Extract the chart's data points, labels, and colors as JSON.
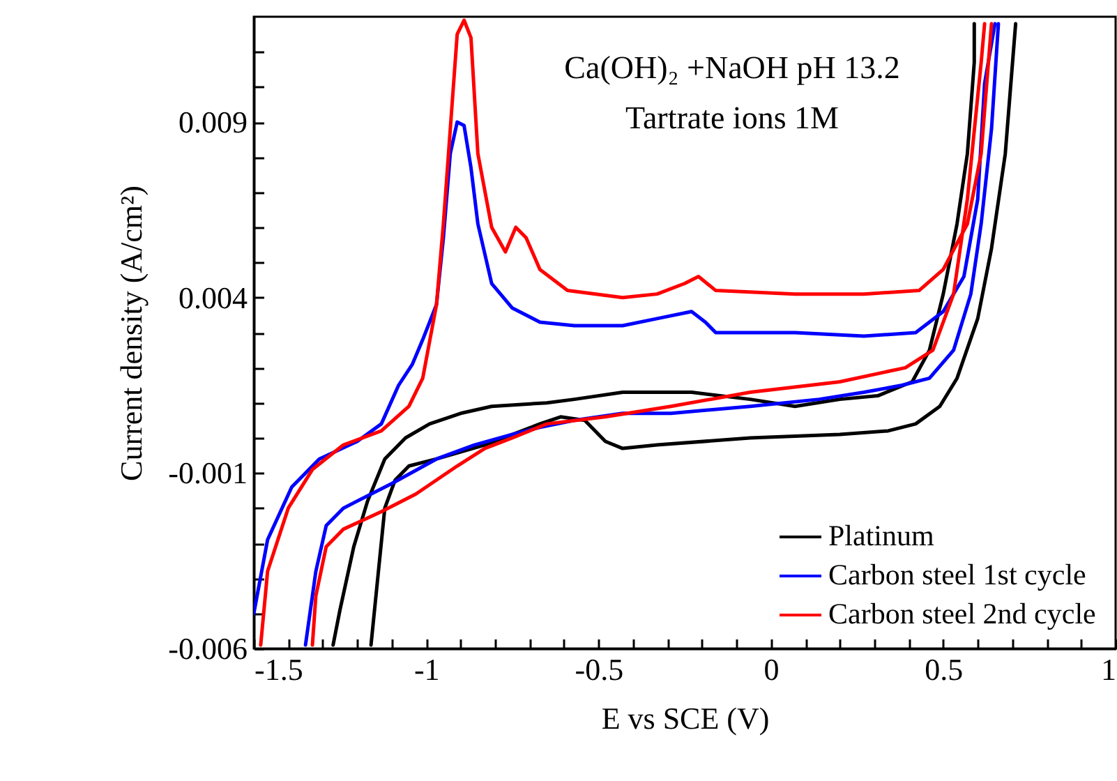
{
  "chart_data": {
    "type": "line",
    "xlabel": "E vs SCE (V)",
    "ylabel": "Current density (A/cm²)",
    "annotations": [
      "Ca(OH)₂ +NaOH pH 13.2",
      "Tartrate ions 1M"
    ],
    "xlim": [
      -1.5,
      1
    ],
    "ylim": [
      -0.006,
      0.012
    ],
    "xticks": [
      -1.5,
      {
        "value": -1.4,
        "label": null
      },
      {
        "value": -1.3,
        "label": null
      },
      {
        "value": -1.2,
        "label": null
      },
      {
        "value": -1.1,
        "label": null
      },
      -1,
      {
        "value": -0.9,
        "label": null
      },
      {
        "value": -0.8,
        "label": null
      },
      {
        "value": -0.7,
        "label": null
      },
      {
        "value": -0.6,
        "label": null
      },
      -0.5,
      {
        "value": -0.4,
        "label": null
      },
      {
        "value": -0.3,
        "label": null
      },
      {
        "value": -0.2,
        "label": null
      },
      {
        "value": -0.1,
        "label": null
      },
      0,
      {
        "value": 0.1,
        "label": null
      },
      {
        "value": 0.2,
        "label": null
      },
      {
        "value": 0.3,
        "label": null
      },
      {
        "value": 0.4,
        "label": null
      },
      0.5,
      {
        "value": 0.6,
        "label": null
      },
      {
        "value": 0.7,
        "label": null
      },
      {
        "value": 0.8,
        "label": null
      },
      {
        "value": 0.9,
        "label": null
      },
      1
    ],
    "yticks": [
      -0.006,
      {
        "value": -0.005,
        "label": null
      },
      {
        "value": -0.004,
        "label": null
      },
      {
        "value": -0.003,
        "label": null
      },
      {
        "value": -0.002,
        "label": null
      },
      -0.001,
      {
        "value": 0,
        "label": null
      },
      {
        "value": 0.001,
        "label": null
      },
      {
        "value": 0.002,
        "label": null
      },
      {
        "value": 0.003,
        "label": null
      },
      0.004,
      {
        "value": 0.005,
        "label": null
      },
      {
        "value": 0.006,
        "label": null
      },
      {
        "value": 0.007,
        "label": null
      },
      {
        "value": 0.008,
        "label": null
      },
      0.009,
      {
        "value": 0.01,
        "label": null
      },
      {
        "value": 0.011,
        "label": null
      }
    ],
    "grid": false,
    "legend": "bottom right",
    "line_style": "solid",
    "series": [
      {
        "name": "Platinum",
        "color": "#000000",
        "x": [
          -1.16,
          -1.12,
          -1.09,
          -1.05,
          -0.97,
          -0.83,
          -0.75,
          -0.67,
          -0.61,
          -0.54,
          -0.48,
          -0.43,
          -0.33,
          -0.06,
          0.2,
          0.34,
          0.42,
          0.49,
          0.54,
          0.6,
          0.64,
          0.68,
          0.71,
          0.65,
          0.59,
          0.59,
          0.57,
          0.54,
          0.5,
          0.46,
          0.41,
          0.31,
          0.2,
          0.07,
          -0.06,
          -0.23,
          -0.43,
          -0.57,
          -0.65,
          -0.81,
          -0.9,
          -0.99,
          -1.06,
          -1.12,
          -1.17,
          -1.21,
          -1.25,
          -1.27
        ],
        "values": [
          -0.0059,
          -0.002,
          -0.0012,
          -0.0008,
          -0.0006,
          -0.0002,
          0.0001,
          0.0004,
          0.0006,
          0.0005,
          -0.0001,
          -0.0003,
          -0.0002,
          0.0,
          0.0001,
          0.0002,
          0.0004,
          0.0009,
          0.0017,
          0.0034,
          0.0054,
          0.0081,
          0.0118,
          null,
          0.0118,
          0.0107,
          0.0081,
          0.0061,
          0.0041,
          0.0025,
          0.0016,
          0.0012,
          0.0011,
          0.0009,
          0.0011,
          0.0013,
          0.0013,
          0.0011,
          0.001,
          0.0009,
          0.0007,
          0.0004,
          0.0,
          -0.0006,
          -0.0018,
          -0.0031,
          -0.0049,
          -0.0059
        ]
      },
      {
        "name": "Carbon steel 1st cycle",
        "color": "#0000ff",
        "x": [
          -1.35,
          -1.32,
          -1.29,
          -1.24,
          -1.1,
          -0.97,
          -0.86,
          -0.75,
          -0.67,
          -0.57,
          -0.43,
          -0.29,
          -0.06,
          0.14,
          0.27,
          0.38,
          0.46,
          0.53,
          0.58,
          0.61,
          0.64,
          0.66,
          0.655,
          0.65,
          0.62,
          0.6,
          0.56,
          0.5,
          0.42,
          0.27,
          0.07,
          -0.16,
          -0.19,
          -0.23,
          -0.33,
          -0.43,
          -0.57,
          -0.67,
          -0.75,
          -0.81,
          -0.85,
          -0.87,
          -0.89,
          -0.91,
          -0.93,
          -0.95,
          -0.97,
          -1.01,
          -1.04,
          -1.08,
          -1.13,
          -1.2,
          -1.31,
          -1.39,
          -1.46,
          -1.5
        ],
        "values": [
          -0.0059,
          -0.0038,
          -0.0025,
          -0.002,
          -0.0013,
          -0.0006,
          -0.0002,
          0.0001,
          0.0003,
          0.0005,
          0.0007,
          0.0007,
          0.0009,
          0.0011,
          0.0013,
          0.0015,
          0.0017,
          0.0025,
          0.0041,
          0.0061,
          0.0088,
          0.0118,
          null,
          0.0118,
          0.0101,
          0.0068,
          0.0046,
          0.0036,
          0.003,
          0.0029,
          0.003,
          0.003,
          0.0033,
          0.0036,
          0.0034,
          0.0032,
          0.0032,
          0.0033,
          0.0037,
          0.0044,
          0.0061,
          0.0077,
          0.0089,
          0.009,
          0.0081,
          0.0057,
          0.0038,
          0.0028,
          0.0021,
          0.0015,
          0.0004,
          -0.0001,
          -0.0006,
          -0.0014,
          -0.0029,
          -0.005
        ]
      },
      {
        "name": "Carbon steel 2nd cycle",
        "color": "#ff0000",
        "x": [
          -1.33,
          -1.32,
          -1.29,
          -1.24,
          -1.13,
          -1.03,
          -0.91,
          -0.83,
          -0.75,
          -0.65,
          -0.48,
          -0.29,
          -0.06,
          0.2,
          0.39,
          0.47,
          0.53,
          0.57,
          0.61,
          0.62,
          0.63,
          0.64,
          0.61,
          0.57,
          0.5,
          0.43,
          0.27,
          0.07,
          -0.16,
          -0.21,
          -0.25,
          -0.33,
          -0.43,
          -0.59,
          -0.67,
          -0.71,
          -0.74,
          -0.77,
          -0.81,
          -0.85,
          -0.87,
          -0.89,
          -0.91,
          -0.93,
          -0.95,
          -0.97,
          -1.01,
          -1.05,
          -1.13,
          -1.24,
          -1.33,
          -1.4,
          -1.46,
          -1.48
        ],
        "values": [
          -0.0059,
          -0.0045,
          -0.0031,
          -0.0026,
          -0.0021,
          -0.0016,
          -0.0008,
          -0.0003,
          0.0,
          0.0004,
          0.0006,
          0.0009,
          0.0013,
          0.0016,
          0.002,
          0.0025,
          0.0041,
          0.0068,
          0.0107,
          0.0118,
          null,
          0.0118,
          0.0081,
          0.0061,
          0.0048,
          0.0042,
          0.0041,
          0.0041,
          0.0042,
          0.0046,
          0.0044,
          0.0041,
          0.004,
          0.0042,
          0.0048,
          0.0057,
          0.006,
          0.0053,
          0.006,
          0.0081,
          0.0114,
          0.0119,
          0.0115,
          0.0088,
          0.0061,
          0.0038,
          0.0017,
          0.0009,
          0.0002,
          -0.0002,
          -0.0009,
          -0.002,
          -0.0038,
          -0.0059
        ]
      }
    ]
  }
}
